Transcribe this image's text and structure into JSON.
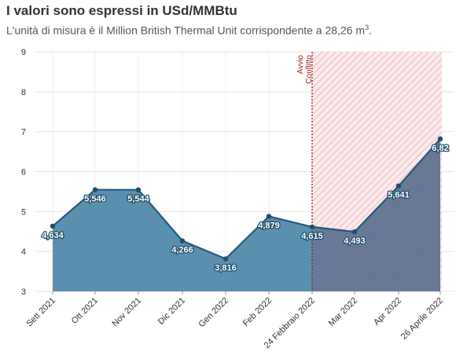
{
  "header": {
    "title": "I valori sono espressi in USd/MMBtu",
    "subtitle": "L'unità di misura è il Million British Thermal Unit corrispondente a 28,26 m",
    "subtitle_sup": "3",
    "subtitle_end": "."
  },
  "chart_data": {
    "type": "area",
    "title": "I valori sono espressi in USd/MMBtu",
    "categories": [
      "Sett 2021",
      "Ott 2021",
      "Nov 2021",
      "Dic 2021",
      "Gen 2022",
      "Feb 2022",
      "24 Febbraio 2022",
      "Mar 2022",
      "Apr 2022",
      "26 Aprile 2022"
    ],
    "values": [
      4.634,
      5.546,
      5.544,
      4.266,
      3.816,
      4.879,
      4.615,
      4.493,
      5.641,
      6.82
    ],
    "data_labels": [
      "4,634",
      "5,546",
      "5,544",
      "4,266",
      "3,816",
      "4,879",
      "4,615",
      "4,493",
      "5,641",
      "6,82"
    ],
    "ylim": [
      3,
      9
    ],
    "yticks": [
      3,
      4,
      5,
      6,
      7,
      8,
      9
    ],
    "grid": true,
    "annotation": {
      "lines": [
        "Avvio",
        "Conflitto"
      ],
      "start_category": "24 Febbraio 2022",
      "end_category": "26 Aprile 2022"
    },
    "colors": {
      "area_before": "#5b8fae",
      "area_after": "#5b6f8e",
      "line": "#245a7c",
      "marker": "#1f4f6b",
      "annotation": "#9b1c1c",
      "hatch": "#e8aab0"
    }
  }
}
